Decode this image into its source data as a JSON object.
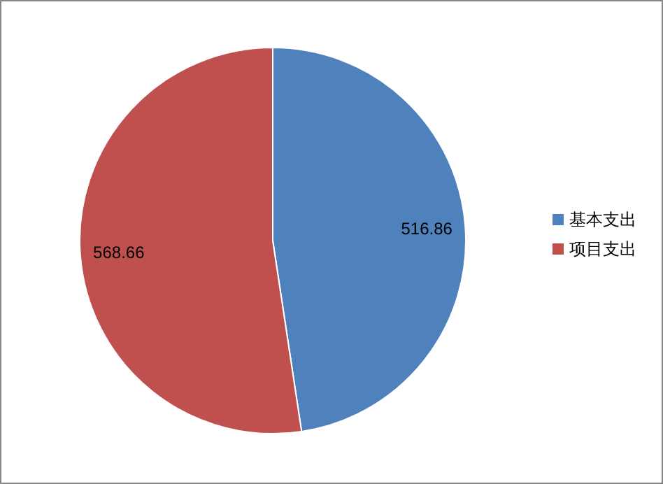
{
  "chart_data": {
    "type": "pie",
    "categories": [
      "基本支出",
      "项目支出"
    ],
    "values": [
      516.86,
      568.66
    ],
    "colors": [
      "#4f81bd",
      "#c0504d"
    ],
    "data_labels": true,
    "legend": "right"
  }
}
